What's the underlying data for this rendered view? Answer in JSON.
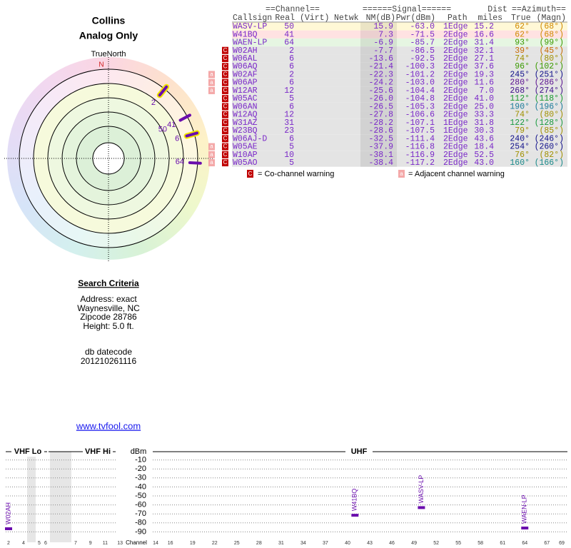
{
  "header": {
    "title": "Collins",
    "subtitle": "Analog Only"
  },
  "polar": {
    "north_label": "TrueNorth",
    "north": "N",
    "color": "#6a0dad",
    "stations": [
      {
        "label": "2",
        "azimuth": 39,
        "outline": "#f2e600"
      },
      {
        "label": "50",
        "azimuth": 62
      },
      {
        "label": "41",
        "azimuth": 62
      },
      {
        "label": "6",
        "azimuth": 74,
        "outline": "#f2e600"
      },
      {
        "label": "64",
        "azimuth": 93
      }
    ]
  },
  "search": {
    "title": "Search Criteria",
    "lines": [
      "Address: exact",
      "Waynesville, NC",
      "Zipcode 28786",
      "Height: 5.0 ft."
    ],
    "db_label": "db datecode",
    "db": "201210261116"
  },
  "link": "www.tvfool.com",
  "table": {
    "groups": {
      "channel": "==Channel==",
      "signal": "======Signal======",
      "dist": "Dist",
      "azimuth": "==Azimuth=="
    },
    "columns": {
      "callsign": "Callsign",
      "real": "Real",
      "virt": "(Virt)",
      "netwk": "Netwk",
      "nm": "NM(dB)",
      "pwr": "Pwr(dBm)",
      "path": "Path",
      "dist": "miles",
      "az_true": "True",
      "az_magn": "(Magn)"
    },
    "rows": [
      {
        "callsign": "WASV-LP",
        "real": "50",
        "nm": "15.9",
        "pwr": "-63.0",
        "path": "1Edge",
        "dist": "15.2",
        "az_true": "62°",
        "az_magn": "(68°)",
        "bg": "#fff8d6",
        "az_color": "#d08a00"
      },
      {
        "callsign": "W41BQ",
        "real": "41",
        "nm": "7.3",
        "pwr": "-71.5",
        "path": "2Edge",
        "dist": "16.6",
        "az_true": "62°",
        "az_magn": "(68°)",
        "bg": "#ffe2e2",
        "az_color": "#d08a00"
      },
      {
        "callsign": "WAEN-LP",
        "real": "64",
        "nm": "-6.9",
        "pwr": "-85.7",
        "path": "2Edge",
        "dist": "31.4",
        "az_true": "93°",
        "az_magn": "(99°)",
        "bg": "#e6f6e2",
        "az_color": "#3a9a00"
      },
      {
        "callsign": "W02AH",
        "real": "2",
        "nm": "-7.7",
        "pwr": "-86.5",
        "path": "2Edge",
        "dist": "32.1",
        "az_true": "39°",
        "az_magn": "(45°)",
        "bg": "#e4e4e4",
        "az_color": "#c86a00",
        "warnings": [
          "C"
        ]
      },
      {
        "callsign": "W06AL",
        "real": "6",
        "nm": "-13.6",
        "pwr": "-92.5",
        "path": "2Edge",
        "dist": "27.1",
        "az_true": "74°",
        "az_magn": "(80°)",
        "bg": "#e4e4e4",
        "az_color": "#a09000",
        "warnings": [
          "C"
        ]
      },
      {
        "callsign": "W06AQ",
        "real": "6",
        "nm": "-21.4",
        "pwr": "-100.3",
        "path": "2Edge",
        "dist": "37.6",
        "az_true": "96°",
        "az_magn": "(102°)",
        "bg": "#e4e4e4",
        "az_color": "#3a9a00",
        "warnings": [
          "C"
        ]
      },
      {
        "callsign": "W02AF",
        "real": "2",
        "nm": "-22.3",
        "pwr": "-101.2",
        "path": "2Edge",
        "dist": "19.3",
        "az_true": "245°",
        "az_magn": "(251°)",
        "bg": "#e4e4e4",
        "az_color": "#10108a",
        "warnings": [
          "a",
          "C"
        ]
      },
      {
        "callsign": "W06AP",
        "real": "6",
        "nm": "-24.2",
        "pwr": "-103.0",
        "path": "2Edge",
        "dist": "11.6",
        "az_true": "280°",
        "az_magn": "(286°)",
        "bg": "#e4e4e4",
        "az_color": "#5a1090",
        "warnings": [
          "a",
          "C"
        ]
      },
      {
        "callsign": "W12AR",
        "real": "12",
        "nm": "-25.6",
        "pwr": "-104.4",
        "path": "2Edge",
        "dist": "7.0",
        "az_true": "268°",
        "az_magn": "(274°)",
        "bg": "#e4e4e4",
        "az_color": "#40108a",
        "warnings": [
          "a",
          "C"
        ]
      },
      {
        "callsign": "W05AC",
        "real": "5",
        "nm": "-26.0",
        "pwr": "-104.8",
        "path": "2Edge",
        "dist": "41.0",
        "az_true": "112°",
        "az_magn": "(118°)",
        "bg": "#e4e4e4",
        "az_color": "#1a9a30",
        "warnings": [
          "C"
        ]
      },
      {
        "callsign": "W06AN",
        "real": "6",
        "nm": "-26.5",
        "pwr": "-105.3",
        "path": "2Edge",
        "dist": "25.0",
        "az_true": "190°",
        "az_magn": "(196°)",
        "bg": "#e4e4e4",
        "az_color": "#1a7a9a",
        "warnings": [
          "C"
        ]
      },
      {
        "callsign": "W12AQ",
        "real": "12",
        "nm": "-27.8",
        "pwr": "-106.6",
        "path": "2Edge",
        "dist": "33.3",
        "az_true": "74°",
        "az_magn": "(80°)",
        "bg": "#e4e4e4",
        "az_color": "#a09000",
        "warnings": [
          "C"
        ]
      },
      {
        "callsign": "W31AZ",
        "real": "31",
        "nm": "-28.2",
        "pwr": "-107.1",
        "path": "1Edge",
        "dist": "31.8",
        "az_true": "122°",
        "az_magn": "(128°)",
        "bg": "#e4e4e4",
        "az_color": "#1a9a40",
        "warnings": [
          "C"
        ]
      },
      {
        "callsign": "W23BQ",
        "real": "23",
        "nm": "-28.6",
        "pwr": "-107.5",
        "path": "1Edge",
        "dist": "30.3",
        "az_true": "79°",
        "az_magn": "(85°)",
        "bg": "#e4e4e4",
        "az_color": "#a09000",
        "warnings": [
          "C"
        ]
      },
      {
        "callsign": "W06AJ-D",
        "real": "6",
        "nm": "-32.5",
        "pwr": "-111.4",
        "path": "2Edge",
        "dist": "43.6",
        "az_true": "240°",
        "az_magn": "(246°)",
        "bg": "#e4e4e4",
        "az_color": "#10108a",
        "warnings": [
          "C"
        ]
      },
      {
        "callsign": "W05AE",
        "real": "5",
        "nm": "-37.9",
        "pwr": "-116.8",
        "path": "2Edge",
        "dist": "18.4",
        "az_true": "254°",
        "az_magn": "(260°)",
        "bg": "#e4e4e4",
        "az_color": "#10108a",
        "warnings": [
          "a",
          "C"
        ]
      },
      {
        "callsign": "W10AP",
        "real": "10",
        "nm": "-38.1",
        "pwr": "-116.9",
        "path": "2Edge",
        "dist": "52.5",
        "az_true": "76°",
        "az_magn": "(82°)",
        "bg": "#e4e4e4",
        "az_color": "#a09000",
        "warnings": [
          "a",
          "C"
        ]
      },
      {
        "callsign": "W05AO",
        "real": "5",
        "nm": "-38.4",
        "pwr": "-117.2",
        "path": "2Edge",
        "dist": "43.0",
        "az_true": "160°",
        "az_magn": "(166°)",
        "bg": "#e4e4e4",
        "az_color": "#1a8a8a",
        "warnings": [
          "a",
          "C"
        ]
      }
    ]
  },
  "legend": {
    "co": "C",
    "co_text": "= Co-channel warning",
    "co_color": "#c00000",
    "adj": "a",
    "adj_text": "= Adjacent channel warning",
    "adj_color": "#f4a8a8"
  },
  "spectrum": {
    "panels": [
      "VHF Lo",
      "VHF Hi",
      "UHF"
    ],
    "ylabel": "dBm",
    "ylim": [
      -100,
      0
    ],
    "yticks": [
      -10,
      -20,
      -30,
      -40,
      -50,
      -60,
      -70,
      -80,
      -90
    ],
    "xlabel": "Channel",
    "vhf_ticks": [
      2,
      4,
      5,
      6,
      7,
      9,
      11,
      13
    ],
    "uhf_ticks": [
      14,
      16,
      19,
      22,
      25,
      28,
      31,
      34,
      37,
      40,
      43,
      46,
      49,
      52,
      55,
      58,
      61,
      64,
      67,
      69
    ],
    "color": "#6a0dad",
    "stations": [
      {
        "callsign": "W02AH",
        "channel": 2,
        "dbm": -86.5
      },
      {
        "callsign": "W41BQ",
        "channel": 41,
        "dbm": -71.5
      },
      {
        "callsign": "WASV-LP",
        "channel": 50,
        "dbm": -63.0
      },
      {
        "callsign": "WAEN-LP",
        "channel": 64,
        "dbm": -85.7
      }
    ]
  }
}
